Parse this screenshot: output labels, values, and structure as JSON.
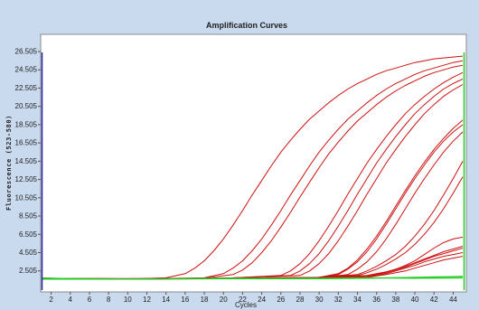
{
  "chart_data": {
    "type": "line",
    "title": "Amplification Curves",
    "xlabel": "Cycles",
    "ylabel": "Fluorescence (523-580)",
    "xlim": [
      1,
      45
    ],
    "ylim": [
      0.5,
      26.505
    ],
    "x_ticks": [
      2,
      4,
      6,
      8,
      10,
      12,
      14,
      16,
      18,
      20,
      22,
      24,
      26,
      28,
      30,
      32,
      34,
      36,
      38,
      40,
      42,
      44
    ],
    "y_ticks": [
      2.505,
      4.505,
      6.505,
      8.505,
      10.505,
      12.505,
      14.505,
      16.505,
      18.505,
      20.505,
      22.505,
      24.505,
      26.505
    ],
    "y_tick_labels": [
      "2.505",
      "4.505",
      "6.505",
      "8.505",
      "10.505",
      "12.505",
      "14.505",
      "16.505",
      "18.505",
      "20.505",
      "22.505",
      "24.505",
      "26.505"
    ],
    "grid": false,
    "legend": "none",
    "colors": {
      "amplification": "#cc1111",
      "baseline": "#22cc22",
      "axis_marker": "#2222aa",
      "background": "#c9d9ee",
      "plot_bg": "#ffffff"
    },
    "series": [
      {
        "x": [
          1,
          10,
          14,
          16,
          17,
          18,
          19,
          20,
          21,
          22,
          23,
          24,
          25,
          26,
          27,
          28,
          29,
          30,
          31,
          32,
          33,
          34,
          35,
          36,
          37,
          38,
          39,
          40,
          41,
          42,
          43,
          44,
          45
        ],
        "y": [
          1.7,
          1.6,
          1.75,
          2.2,
          2.8,
          3.6,
          4.7,
          6.0,
          7.5,
          9.1,
          10.8,
          12.4,
          14.0,
          15.5,
          16.8,
          18.0,
          19.1,
          20.0,
          20.9,
          21.7,
          22.4,
          23.0,
          23.5,
          24.0,
          24.4,
          24.7,
          25.0,
          25.3,
          25.5,
          25.7,
          25.8,
          25.9,
          26.0
        ]
      },
      {
        "x": [
          1,
          10,
          18,
          20,
          21,
          22,
          23,
          24,
          25,
          26,
          27,
          28,
          29,
          30,
          31,
          32,
          33,
          34,
          35,
          36,
          37,
          38,
          39,
          40,
          41,
          42,
          43,
          44,
          45
        ],
        "y": [
          1.7,
          1.6,
          1.75,
          2.2,
          2.8,
          3.6,
          4.7,
          6.0,
          7.5,
          9.1,
          10.8,
          12.4,
          14.0,
          15.5,
          16.8,
          18.0,
          19.1,
          20.0,
          20.9,
          21.7,
          22.4,
          23.0,
          23.5,
          24.0,
          24.4,
          24.7,
          25.0,
          25.3,
          25.5
        ]
      },
      {
        "x": [
          1,
          10,
          18,
          21,
          22,
          23,
          24,
          25,
          26,
          27,
          28,
          29,
          30,
          31,
          32,
          33,
          34,
          35,
          36,
          37,
          38,
          39,
          40,
          41,
          42,
          43,
          44,
          45
        ],
        "y": [
          1.6,
          1.6,
          1.7,
          2.1,
          2.6,
          3.4,
          4.5,
          5.8,
          7.3,
          8.9,
          10.6,
          12.2,
          13.8,
          15.3,
          16.6,
          17.8,
          18.9,
          19.8,
          20.7,
          21.5,
          22.2,
          22.8,
          23.3,
          23.8,
          24.2,
          24.5,
          24.8,
          25.0
        ]
      },
      {
        "x": [
          1,
          10,
          20,
          26,
          27,
          28,
          29,
          30,
          31,
          32,
          33,
          34,
          35,
          36,
          37,
          38,
          39,
          40,
          41,
          42,
          43,
          44,
          45
        ],
        "y": [
          1.7,
          1.65,
          1.7,
          2.0,
          2.5,
          3.3,
          4.4,
          5.8,
          7.4,
          9.1,
          10.9,
          12.6,
          14.3,
          15.8,
          17.2,
          18.5,
          19.7,
          20.7,
          21.6,
          22.4,
          23.1,
          23.7,
          24.2
        ]
      },
      {
        "x": [
          1,
          10,
          20,
          27,
          28,
          29,
          30,
          31,
          32,
          33,
          34,
          35,
          36,
          37,
          38,
          39,
          40,
          41,
          42,
          43,
          44,
          45
        ],
        "y": [
          1.6,
          1.6,
          1.7,
          2.0,
          2.5,
          3.3,
          4.4,
          5.8,
          7.4,
          9.1,
          10.9,
          12.6,
          14.3,
          15.8,
          17.2,
          18.5,
          19.7,
          20.7,
          21.6,
          22.4,
          23.0,
          23.5
        ]
      },
      {
        "x": [
          1,
          10,
          20,
          28,
          29,
          30,
          31,
          32,
          33,
          34,
          35,
          36,
          37,
          38,
          39,
          40,
          41,
          42,
          43,
          44,
          45
        ],
        "y": [
          1.7,
          1.6,
          1.7,
          2.0,
          2.5,
          3.3,
          4.4,
          5.8,
          7.4,
          9.1,
          10.9,
          12.6,
          14.3,
          15.8,
          17.2,
          18.5,
          19.7,
          20.7,
          21.6,
          22.3,
          22.9
        ]
      },
      {
        "x": [
          1,
          10,
          20,
          30,
          32,
          33,
          34,
          35,
          36,
          37,
          38,
          39,
          40,
          41,
          42,
          43,
          44,
          45
        ],
        "y": [
          1.7,
          1.6,
          1.7,
          1.8,
          2.2,
          2.8,
          3.7,
          4.9,
          6.3,
          7.9,
          9.6,
          11.3,
          12.9,
          14.4,
          15.8,
          17.0,
          18.1,
          19.0
        ]
      },
      {
        "x": [
          1,
          10,
          20,
          30,
          32,
          33,
          34,
          35,
          36,
          37,
          38,
          39,
          40,
          41,
          42,
          43,
          44,
          45
        ],
        "y": [
          1.6,
          1.6,
          1.7,
          1.8,
          2.1,
          2.7,
          3.5,
          4.6,
          6.0,
          7.6,
          9.3,
          11.0,
          12.6,
          14.1,
          15.5,
          16.7,
          17.7,
          18.5
        ]
      },
      {
        "x": [
          1,
          10,
          20,
          30,
          33,
          34,
          35,
          36,
          37,
          38,
          39,
          40,
          41,
          42,
          43,
          44,
          45
        ],
        "y": [
          1.7,
          1.65,
          1.7,
          1.8,
          2.1,
          2.7,
          3.5,
          4.6,
          6.0,
          7.6,
          9.3,
          11.0,
          12.6,
          14.1,
          15.5,
          16.7,
          17.7
        ]
      },
      {
        "x": [
          1,
          10,
          20,
          30,
          34,
          35,
          36,
          37,
          38,
          39,
          40,
          41,
          42,
          43,
          44,
          45
        ],
        "y": [
          1.6,
          1.6,
          1.7,
          1.8,
          2.1,
          2.5,
          3.0,
          3.6,
          4.3,
          5.2,
          6.3,
          7.6,
          9.1,
          10.8,
          12.6,
          14.5
        ]
      },
      {
        "x": [
          1,
          10,
          20,
          30,
          34,
          35,
          36,
          37,
          38,
          39,
          40,
          41,
          42,
          43,
          44,
          45
        ],
        "y": [
          1.7,
          1.6,
          1.7,
          1.8,
          2.0,
          2.3,
          2.7,
          3.2,
          3.8,
          4.5,
          5.4,
          6.5,
          7.8,
          9.3,
          11.0,
          12.8
        ]
      },
      {
        "x": [
          1,
          10,
          20,
          30,
          35,
          36,
          37,
          38,
          39,
          40,
          41,
          42,
          43,
          44,
          45
        ],
        "y": [
          1.6,
          1.6,
          1.7,
          1.8,
          2.0,
          2.2,
          2.4,
          2.7,
          3.0,
          3.4,
          3.8,
          4.2,
          4.6,
          4.9,
          5.2
        ]
      },
      {
        "x": [
          1,
          10,
          20,
          30,
          35,
          36,
          37,
          38,
          39,
          40,
          41,
          42,
          43,
          44,
          45
        ],
        "y": [
          1.7,
          1.65,
          1.7,
          1.8,
          1.9,
          2.1,
          2.3,
          2.6,
          2.9,
          3.3,
          3.7,
          4.1,
          4.4,
          4.7,
          5.0
        ]
      },
      {
        "x": [
          1,
          10,
          20,
          30,
          35,
          36,
          37,
          38,
          39,
          40,
          41,
          42,
          43,
          44,
          45
        ],
        "y": [
          1.6,
          1.6,
          1.7,
          1.75,
          1.9,
          2.0,
          2.2,
          2.5,
          2.8,
          3.1,
          3.5,
          3.8,
          4.1,
          4.3,
          4.5
        ]
      },
      {
        "x": [
          1,
          10,
          20,
          30,
          35,
          36,
          37,
          38,
          39,
          40,
          41,
          42,
          43,
          44,
          45
        ],
        "y": [
          1.6,
          1.6,
          1.65,
          1.7,
          1.8,
          1.95,
          2.1,
          2.3,
          2.5,
          2.8,
          3.1,
          3.4,
          3.7,
          3.9,
          4.1
        ]
      },
      {
        "x": [
          1,
          10,
          20,
          30,
          34,
          35,
          36,
          37,
          38,
          39,
          40,
          41,
          42,
          43,
          44,
          45
        ],
        "y": [
          1.7,
          1.6,
          1.7,
          1.7,
          1.8,
          1.9,
          2.1,
          2.4,
          2.7,
          3.1,
          3.6,
          4.3,
          5.0,
          5.6,
          6.0,
          6.2
        ]
      },
      {
        "x": [
          1,
          10,
          20,
          30,
          35,
          40,
          45
        ],
        "y": [
          1.6,
          1.6,
          1.65,
          1.65,
          1.7,
          1.8,
          1.9
        ],
        "color": "baseline"
      },
      {
        "x": [
          1,
          10,
          20,
          30,
          35,
          40,
          45
        ],
        "y": [
          1.7,
          1.6,
          1.7,
          1.7,
          1.75,
          1.7,
          1.75
        ],
        "color": "baseline"
      }
    ]
  }
}
